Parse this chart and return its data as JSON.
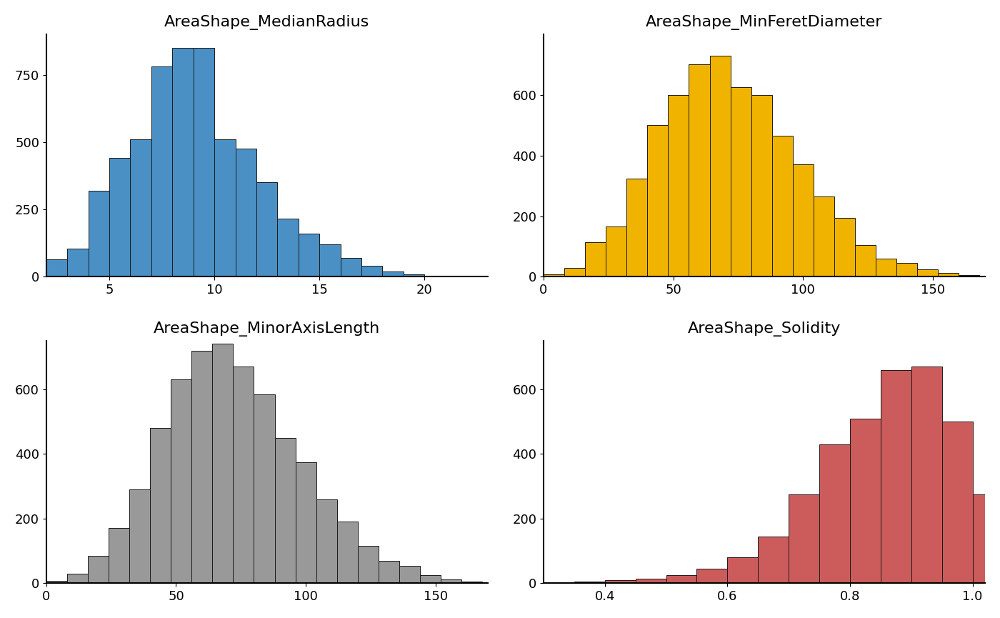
{
  "plots": [
    {
      "title": "AreaShape_MedianRadius",
      "color": "#4A90C4",
      "bin_edges": [
        2,
        3,
        4,
        5,
        6,
        7,
        8,
        9,
        10,
        11,
        12,
        13,
        14,
        15,
        16,
        17,
        18,
        19,
        20,
        21,
        22,
        23
      ],
      "counts": [
        65,
        105,
        320,
        440,
        510,
        780,
        850,
        850,
        510,
        475,
        350,
        215,
        160,
        120,
        70,
        40,
        20,
        10,
        5,
        3,
        2
      ],
      "xlim": [
        2,
        23
      ],
      "ylim": [
        0,
        900
      ],
      "xticks": [
        5,
        10,
        15,
        20
      ],
      "yticks": [
        0,
        250,
        500,
        750
      ]
    },
    {
      "title": "AreaShape_MinFeretDiameter",
      "color": "#F0B400",
      "bin_edges": [
        0,
        8,
        16,
        24,
        32,
        40,
        48,
        56,
        64,
        72,
        80,
        88,
        96,
        104,
        112,
        120,
        128,
        136,
        144,
        152,
        160,
        168
      ],
      "counts": [
        8,
        30,
        115,
        165,
        325,
        500,
        600,
        700,
        730,
        625,
        600,
        465,
        370,
        265,
        195,
        105,
        60,
        45,
        25,
        12,
        5
      ],
      "xlim": [
        0,
        170
      ],
      "ylim": [
        0,
        800
      ],
      "xticks": [
        0,
        50,
        100,
        150
      ],
      "yticks": [
        0,
        200,
        400,
        600
      ]
    },
    {
      "title": "AreaShape_MinorAxisLength",
      "color": "#999999",
      "bin_edges": [
        0,
        8,
        16,
        24,
        32,
        40,
        48,
        56,
        64,
        72,
        80,
        88,
        96,
        104,
        112,
        120,
        128,
        136,
        144,
        152,
        160,
        168
      ],
      "counts": [
        8,
        30,
        85,
        170,
        290,
        480,
        630,
        720,
        740,
        670,
        585,
        450,
        375,
        260,
        190,
        115,
        70,
        55,
        25,
        12,
        5
      ],
      "xlim": [
        0,
        170
      ],
      "ylim": [
        0,
        750
      ],
      "xticks": [
        0,
        50,
        100,
        150
      ],
      "yticks": [
        0,
        200,
        400,
        600
      ]
    },
    {
      "title": "AreaShape_Solidity",
      "color": "#CC5C5C",
      "bin_edges": [
        0.3,
        0.35,
        0.4,
        0.45,
        0.5,
        0.55,
        0.6,
        0.65,
        0.7,
        0.75,
        0.8,
        0.85,
        0.9,
        0.95,
        1.0,
        1.05
      ],
      "counts": [
        2,
        5,
        10,
        15,
        25,
        45,
        80,
        145,
        275,
        430,
        510,
        660,
        670,
        500,
        275
      ],
      "xlim": [
        0.3,
        1.02
      ],
      "ylim": [
        0,
        750
      ],
      "xticks": [
        0.4,
        0.6,
        0.8,
        1.0
      ],
      "yticks": [
        0,
        200,
        400,
        600
      ]
    }
  ],
  "background_color": "#ffffff",
  "title_fontsize": 16,
  "tick_fontsize": 13
}
